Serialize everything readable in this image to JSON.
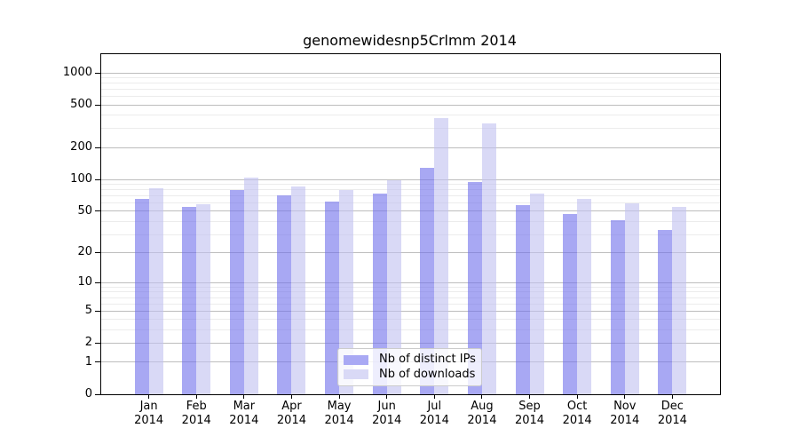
{
  "chart_data": {
    "type": "bar",
    "title": "genomewidesnp5Crlmm 2014",
    "x_year": "2014",
    "categories": [
      "Jan",
      "Feb",
      "Mar",
      "Apr",
      "May",
      "Jun",
      "Jul",
      "Aug",
      "Sep",
      "Oct",
      "Nov",
      "Dec"
    ],
    "series": [
      {
        "name": "Nb of distinct IPs",
        "color": "rgba(110, 110, 235, 0.6)",
        "swatch_color": "#a9a9f4",
        "values": [
          65,
          55,
          80,
          71,
          62,
          74,
          130,
          94,
          57,
          47,
          41,
          33
        ]
      },
      {
        "name": "Nb of downloads",
        "color": "rgba(192, 192, 240, 0.6)",
        "swatch_color": "#d9d9f6",
        "values": [
          82,
          58,
          104,
          86,
          79,
          98,
          380,
          335,
          74,
          66,
          60,
          55
        ]
      }
    ],
    "y_axis": {
      "scale": "log1p",
      "ticks": [
        0,
        1,
        2,
        5,
        10,
        20,
        50,
        100,
        200,
        500,
        1000
      ],
      "minor_gridlines": [
        3,
        4,
        6,
        7,
        8,
        9,
        30,
        40,
        60,
        70,
        80,
        90,
        300,
        400,
        600,
        700,
        800,
        900
      ],
      "top_value": 1480
    },
    "grid": {
      "major_color": "#bdbdbd",
      "minor_color": "#ececec"
    },
    "legend": {
      "position": "inside-bottom-center"
    }
  }
}
